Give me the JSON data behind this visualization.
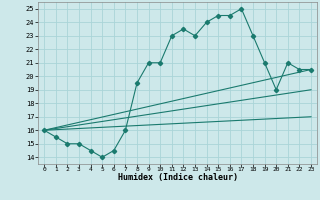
{
  "xlabel": "Humidex (Indice chaleur)",
  "bg_color": "#cde8ea",
  "grid_color": "#aad4d8",
  "line_color": "#1a7a6e",
  "xlim": [
    -0.5,
    23.5
  ],
  "ylim": [
    13.5,
    25.5
  ],
  "xticks": [
    0,
    1,
    2,
    3,
    4,
    5,
    6,
    7,
    8,
    9,
    10,
    11,
    12,
    13,
    14,
    15,
    16,
    17,
    18,
    19,
    20,
    21,
    22,
    23
  ],
  "yticks": [
    14,
    15,
    16,
    17,
    18,
    19,
    20,
    21,
    22,
    23,
    24,
    25
  ],
  "main_x": [
    0,
    1,
    2,
    3,
    4,
    5,
    6,
    7,
    8,
    9,
    10,
    11,
    12,
    13,
    14,
    15,
    16,
    17,
    18,
    19,
    20,
    21,
    22,
    23
  ],
  "main_y": [
    16,
    15.5,
    15,
    15,
    14.5,
    14,
    14.5,
    16,
    19.5,
    21,
    21,
    23,
    23.5,
    23,
    24,
    24.5,
    24.5,
    25,
    23,
    21,
    19,
    21,
    20.5,
    20.5
  ],
  "line1_x": [
    0,
    23
  ],
  "line1_y": [
    16,
    20.5
  ],
  "line2_x": [
    0,
    23
  ],
  "line2_y": [
    16,
    19.0
  ],
  "line3_x": [
    0,
    23
  ],
  "line3_y": [
    16,
    17.0
  ]
}
